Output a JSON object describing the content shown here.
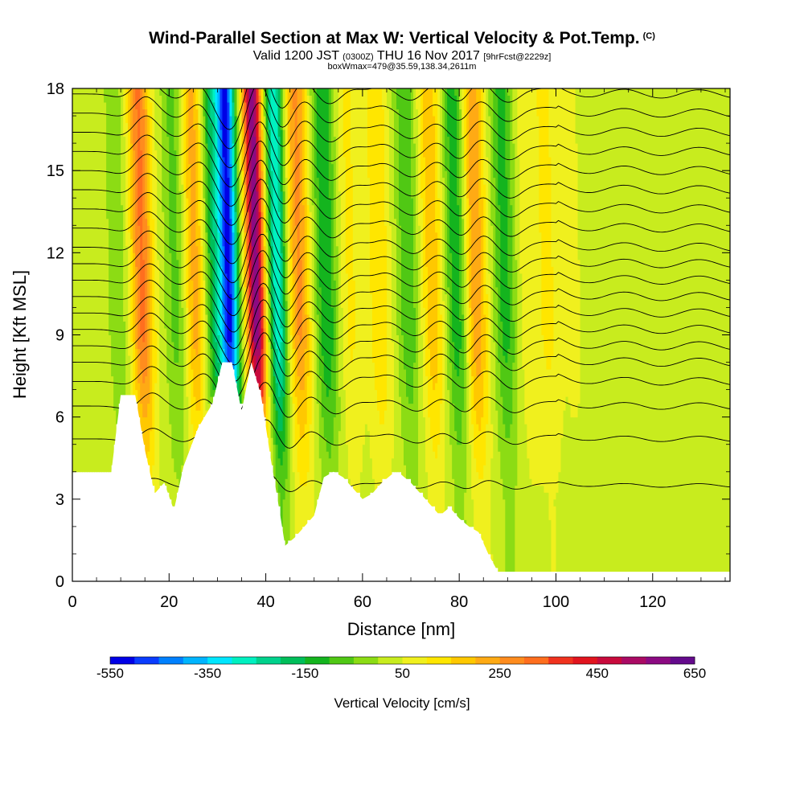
{
  "chart_data": {
    "type": "heatmap",
    "title": "Wind-Parallel Section at Max W: Vertical Velocity & Pot.Temp.",
    "title_mark": "(C)",
    "subtitle": {
      "prefix": "Valid 1200 JST",
      "utc": "(0300Z)",
      "date": "THU 16 Nov 2017",
      "forecast": "[9hrFcst@2229z]"
    },
    "box_label": "boxWmax=479@35.59,138.34,2611m",
    "xlabel": "Distance [nm]",
    "ylabel": "Height [Kft MSL]",
    "xlim": [
      0,
      136
    ],
    "ylim": [
      0,
      18
    ],
    "x_ticks": [
      "0",
      "20",
      "40",
      "60",
      "80",
      "100",
      "120"
    ],
    "y_ticks": [
      "0",
      "3",
      "6",
      "9",
      "12",
      "15",
      "18"
    ],
    "colorbar": {
      "label": "Vertical Velocity [cm/s]",
      "range": [
        -550,
        650
      ],
      "tick_labels": [
        "-550",
        "-350",
        "-150",
        "50",
        "250",
        "450",
        "650"
      ],
      "colors": [
        "#0000e6",
        "#0a3cff",
        "#0080ff",
        "#00b4ff",
        "#00e6ff",
        "#00f0c0",
        "#00d28c",
        "#00be5a",
        "#14b41e",
        "#50c814",
        "#8cdc14",
        "#c8ec1e",
        "#f0f01e",
        "#ffe600",
        "#ffc800",
        "#ffaa14",
        "#ff8c1e",
        "#ff6e1e",
        "#f0321e",
        "#e1141e",
        "#c80a3c",
        "#aa0a64",
        "#8c0a82",
        "#640a8c"
      ]
    },
    "bands": [
      {
        "x": 10,
        "w": -60
      },
      {
        "x": 15,
        "w": 280
      },
      {
        "x": 22,
        "w": -100
      },
      {
        "x": 26,
        "w": 200
      },
      {
        "x": 30,
        "w": -200
      },
      {
        "x": 33,
        "w": -520
      },
      {
        "x": 38.5,
        "w": 560
      },
      {
        "x": 43,
        "w": -330
      },
      {
        "x": 47.5,
        "w": 230
      },
      {
        "x": 53,
        "w": -180
      },
      {
        "x": 58,
        "w": 80
      },
      {
        "x": 64,
        "w": 120
      },
      {
        "x": 70,
        "w": -120
      },
      {
        "x": 75,
        "w": 160
      },
      {
        "x": 80,
        "w": -170
      },
      {
        "x": 84,
        "w": 220
      },
      {
        "x": 90,
        "w": -150
      },
      {
        "x": 95,
        "w": 60
      },
      {
        "x": 99,
        "w": 80
      },
      {
        "x": 104,
        "w": 30
      },
      {
        "x": 115,
        "w": 10
      }
    ],
    "terrain": {
      "x": [
        0,
        8,
        10,
        13,
        15,
        17,
        19,
        21,
        23,
        26,
        29,
        31,
        33,
        35,
        37,
        39,
        41,
        43,
        44,
        46,
        48,
        50,
        52,
        54,
        56,
        58,
        60,
        62,
        64,
        66,
        68,
        70,
        72,
        74,
        76,
        78,
        80,
        82,
        84,
        86,
        88,
        90,
        100,
        110,
        120,
        130,
        136
      ],
      "y": [
        3.9,
        3.9,
        6.8,
        6.8,
        4.8,
        3.2,
        3.6,
        2.6,
        4.2,
        5.6,
        6.5,
        8.0,
        8.0,
        6.2,
        8.0,
        6.8,
        4.5,
        2.4,
        1.3,
        1.6,
        2.0,
        2.4,
        3.8,
        4.0,
        3.8,
        3.4,
        3.0,
        3.2,
        3.6,
        3.9,
        3.9,
        3.6,
        3.2,
        2.8,
        2.4,
        2.7,
        2.3,
        2.0,
        1.8,
        1.0,
        0.35,
        0.35,
        0.35,
        0.35,
        0.35,
        0.35,
        0.35
      ]
    },
    "theta_contours": {
      "base_levels_kft": [
        3.5,
        5.2,
        6.4,
        7.3,
        8.0,
        8.6,
        9.2,
        9.8,
        10.4,
        11.0,
        11.6,
        12.2,
        12.9,
        13.6,
        14.3,
        15.0,
        15.7,
        16.4,
        17.1,
        17.8
      ]
    },
    "grid": false,
    "legend": "bottom"
  }
}
